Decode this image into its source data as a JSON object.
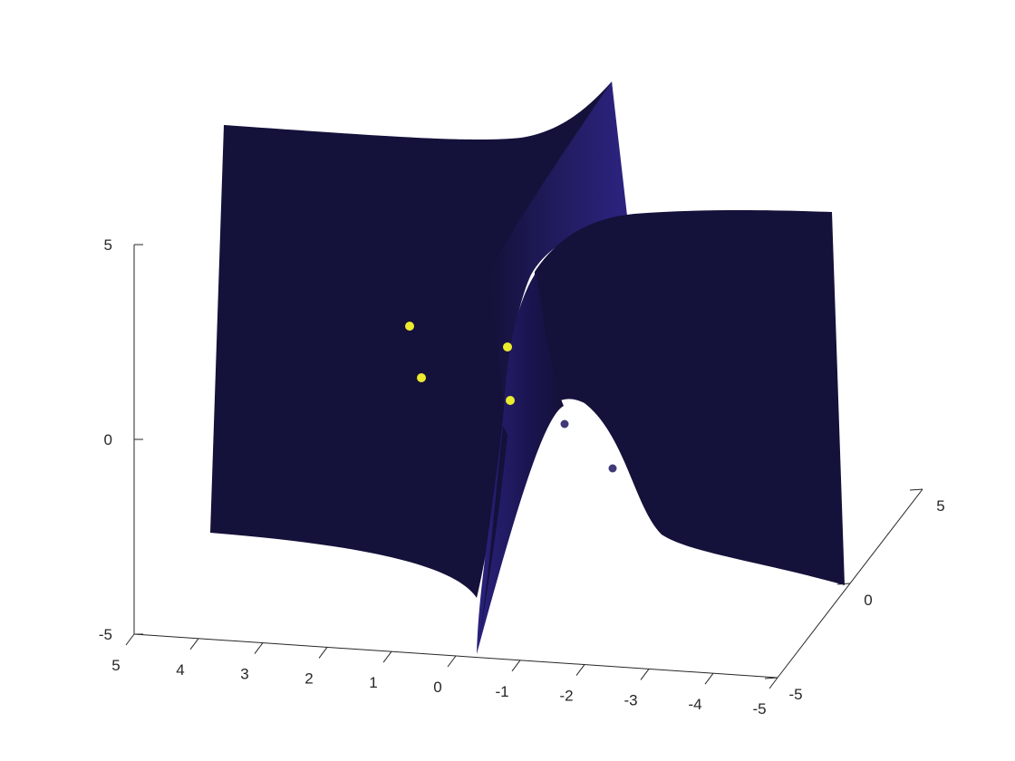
{
  "chart_data": {
    "type": "surface",
    "title": "",
    "xlabel": "",
    "ylabel": "",
    "zlabel": "",
    "xlim": [
      -5,
      5
    ],
    "ylim": [
      -5,
      5
    ],
    "zlim": [
      -5,
      5
    ],
    "x_ticks": [
      "5",
      "4",
      "3",
      "2",
      "1",
      "0",
      "-1",
      "-2",
      "-3",
      "-4",
      "-5"
    ],
    "y_ticks": [
      "-5",
      "0",
      "5"
    ],
    "z_ticks": [
      "-5",
      "0",
      "5"
    ],
    "grid": false,
    "surface_color": "#14113a",
    "surface_highlight": "#2c2380",
    "points_above": {
      "color": "#ecec2e",
      "values": [
        {
          "x": -1.2,
          "y": 0.8,
          "z": 1.3
        },
        {
          "x": -0.6,
          "y": -0.6,
          "z": 0.6
        },
        {
          "x": 1.4,
          "y": 1.7,
          "z": 2.1
        },
        {
          "x": 0.5,
          "y": 1.2,
          "z": 0.9
        }
      ]
    },
    "points_below": {
      "color": "#403a78",
      "values": [
        {
          "x": -1.9,
          "y": -0.9,
          "z": 0.2
        },
        {
          "x": -2.8,
          "y": -0.7,
          "z": -0.9
        }
      ]
    }
  }
}
